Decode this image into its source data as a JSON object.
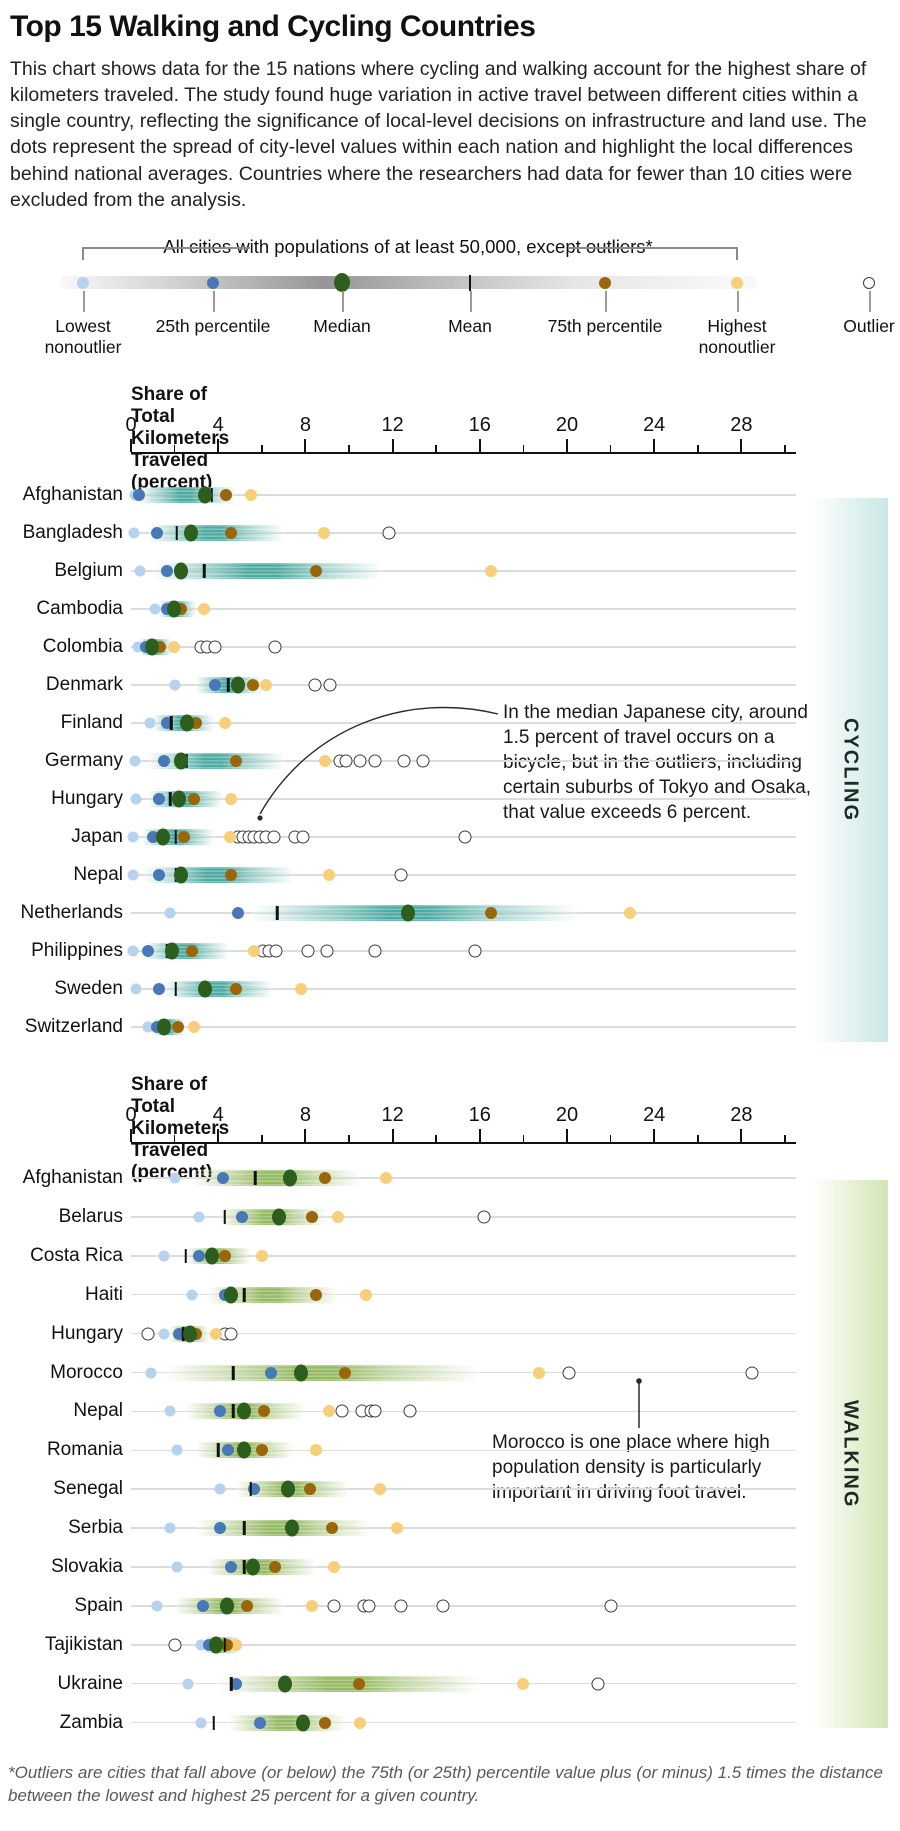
{
  "header": {
    "title": "Top 15 Walking and Cycling Countries",
    "description": "This chart shows data for the 15 nations where cycling and walking account for the highest share of kilometers traveled. The study found huge variation in active travel between different cities within a single country, reflecting the significance of local-level decisions on infrastructure and land use. The dots represent the spread of city-level values within each nation and highlight the local differences behind national averages. Countries where the researchers had data for fewer than 10 cities were excluded from the analysis."
  },
  "legend": {
    "bracket_label": "All cities with populations of at least 50,000, except outliers*",
    "items": [
      {
        "label": "Lowest\nnonoutlier",
        "color": "#b7d2ec",
        "kind": "dot"
      },
      {
        "label": "25th percentile",
        "color": "#4878b8",
        "kind": "dot"
      },
      {
        "label": "Median",
        "color": "#2c5e1e",
        "kind": "dot-large"
      },
      {
        "label": "Mean",
        "color": "#111111",
        "kind": "tick"
      },
      {
        "label": "75th percentile",
        "color": "#9a660b",
        "kind": "dot"
      },
      {
        "label": "Highest\nnonoutlier",
        "color": "#f7cf7a",
        "kind": "dot"
      },
      {
        "label": "Outlier",
        "color": "#3c3c3c",
        "kind": "open-circle"
      }
    ]
  },
  "colors": {
    "lowest": "#b7d2ec",
    "p25": "#4878b8",
    "median": "#2c5e1e",
    "mean": "#111111",
    "p75": "#9a660b",
    "highest": "#f7cf7a",
    "outlier_stroke": "#3c3c3c",
    "cycling_accent": "#1f968a",
    "walking_accent": "#7aa83a",
    "cycling_side_band": "#c9e7e4",
    "walking_side_band": "#d2e5b4",
    "row_line": "#dcdcdc"
  },
  "chart_data": [
    {
      "type": "box-strip",
      "section": "CYCLING",
      "axis_title": "Share of Total Kilometers Traveled (percent)",
      "xlabel": "Share of Total Kilometers Traveled (percent)",
      "x_ticks": [
        0,
        4,
        8,
        12,
        16,
        20,
        24,
        28
      ],
      "x_minor_step": 2,
      "xlim": [
        0,
        30.5
      ],
      "rows": [
        {
          "country": "Afghanistan",
          "low": 0.2,
          "q1": 0.35,
          "median": 3.4,
          "mean": 3.7,
          "q3": 4.35,
          "high": 5.5,
          "outliers": [],
          "band": [
            0.3,
            4.8
          ]
        },
        {
          "country": "Bangladesh",
          "low": 0.15,
          "q1": 1.2,
          "median": 2.75,
          "mean": 2.1,
          "q3": 4.6,
          "high": 8.85,
          "outliers": [
            11.85
          ],
          "band": [
            0.8,
            7.0
          ]
        },
        {
          "country": "Belgium",
          "low": 0.4,
          "q1": 1.65,
          "median": 2.3,
          "mean": 3.35,
          "q3": 8.5,
          "high": 16.5,
          "outliers": [],
          "band": [
            1.0,
            11.5
          ]
        },
        {
          "country": "Cambodia",
          "low": 1.1,
          "q1": 1.65,
          "median": 1.95,
          "mean": 2.1,
          "q3": 2.3,
          "high": 3.35,
          "outliers": [],
          "band": [
            1.3,
            3.0
          ]
        },
        {
          "country": "Colombia",
          "low": 0.3,
          "q1": 0.7,
          "median": 0.95,
          "mean": 1.1,
          "q3": 1.35,
          "high": 1.95,
          "outliers": [
            3.2,
            3.5,
            3.85,
            6.6
          ],
          "band": [
            0.4,
            1.9
          ]
        },
        {
          "country": "Denmark",
          "low": 2.0,
          "q1": 3.85,
          "median": 4.9,
          "mean": 4.45,
          "q3": 5.6,
          "high": 6.2,
          "outliers": [
            8.45,
            9.15
          ],
          "band": [
            3.0,
            6.0
          ]
        },
        {
          "country": "Finland",
          "low": 0.85,
          "q1": 1.65,
          "median": 2.55,
          "mean": 1.85,
          "q3": 3.0,
          "high": 4.3,
          "outliers": [],
          "band": [
            1.0,
            3.8
          ]
        },
        {
          "country": "Germany",
          "low": 0.2,
          "q1": 1.5,
          "median": 2.3,
          "mean": 2.55,
          "q3": 4.8,
          "high": 8.9,
          "outliers": [
            9.6,
            9.85,
            10.5,
            11.2,
            12.5,
            13.4
          ],
          "band": [
            0.8,
            7.0
          ]
        },
        {
          "country": "Hungary",
          "low": 0.25,
          "q1": 1.3,
          "median": 2.2,
          "mean": 1.8,
          "q3": 2.9,
          "high": 4.6,
          "outliers": [],
          "band": [
            0.8,
            4.2
          ]
        },
        {
          "country": "Japan",
          "low": 0.1,
          "q1": 1.0,
          "median": 1.45,
          "mean": 2.05,
          "q3": 2.45,
          "high": 4.55,
          "outliers": [
            4.9,
            5.15,
            5.4,
            5.65,
            5.9,
            6.2,
            6.55,
            7.5,
            7.9,
            15.3
          ],
          "band": [
            0.5,
            3.8
          ]
        },
        {
          "country": "Nepal",
          "low": 0.1,
          "q1": 1.3,
          "median": 2.3,
          "mean": 2.05,
          "q3": 4.6,
          "high": 9.1,
          "outliers": [
            12.4
          ],
          "band": [
            0.6,
            7.5
          ]
        },
        {
          "country": "Netherlands",
          "low": 1.8,
          "q1": 4.9,
          "median": 12.7,
          "mean": 6.7,
          "q3": 16.5,
          "high": 22.9,
          "outliers": [],
          "band": [
            5.5,
            20.5
          ]
        },
        {
          "country": "Philippines",
          "low": 0.1,
          "q1": 0.8,
          "median": 1.9,
          "mean": 1.65,
          "q3": 2.8,
          "high": 5.65,
          "outliers": [
            6.05,
            6.35,
            6.65,
            8.1,
            9.0,
            11.2,
            15.8
          ],
          "band": [
            0.6,
            4.5
          ]
        },
        {
          "country": "Sweden",
          "low": 0.25,
          "q1": 1.3,
          "median": 3.4,
          "mean": 2.05,
          "q3": 4.8,
          "high": 7.8,
          "outliers": [],
          "band": [
            1.5,
            6.5
          ]
        },
        {
          "country": "Switzerland",
          "low": 0.8,
          "q1": 1.2,
          "median": 1.5,
          "mean": 1.6,
          "q3": 2.15,
          "high": 2.9,
          "outliers": [],
          "band": [
            1.0,
            2.5
          ]
        }
      ],
      "annotation": {
        "text": "In the median Japanese city, around\n1.5 percent of travel occurs on a\nbicycle, but in the outliers, including\ncertain suburbs of Tokyo and Osaka,\nthat value exceeds 6 percent.",
        "target_country": "Japan"
      }
    },
    {
      "type": "box-strip",
      "section": "WALKING",
      "axis_title": "Share of Total Kilometers Traveled (percent)",
      "xlabel": "Share of Total Kilometers Traveled (percent)",
      "x_ticks": [
        0,
        4,
        8,
        12,
        16,
        20,
        24,
        28
      ],
      "x_minor_step": 2,
      "xlim": [
        0,
        30.5
      ],
      "rows": [
        {
          "country": "Afghanistan",
          "low": 2.0,
          "q1": 4.2,
          "median": 7.3,
          "mean": 5.7,
          "q3": 8.9,
          "high": 11.7,
          "outliers": [],
          "band": [
            2.8,
            10.5
          ]
        },
        {
          "country": "Belarus",
          "low": 3.1,
          "q1": 5.1,
          "median": 6.8,
          "mean": 4.3,
          "q3": 8.3,
          "high": 9.5,
          "outliers": [
            16.2
          ],
          "band": [
            4.0,
            9.0
          ]
        },
        {
          "country": "Costa Rica",
          "low": 1.5,
          "q1": 3.1,
          "median": 3.7,
          "mean": 2.5,
          "q3": 4.3,
          "high": 6.0,
          "outliers": [],
          "band": [
            2.5,
            5.5
          ]
        },
        {
          "country": "Haiti",
          "low": 2.8,
          "q1": 4.3,
          "median": 4.6,
          "mean": 5.2,
          "q3": 8.5,
          "high": 10.8,
          "outliers": [],
          "band": [
            3.5,
            9.5
          ]
        },
        {
          "country": "Hungary",
          "low": 1.5,
          "q1": 2.2,
          "median": 2.7,
          "mean": 2.4,
          "q3": 3.0,
          "high": 3.9,
          "outliers": [
            4.3,
            4.6
          ],
          "low_outliers": [
            0.8
          ],
          "band": [
            1.8,
            3.6
          ]
        },
        {
          "country": "Morocco",
          "low": 0.9,
          "q1": 6.4,
          "median": 7.8,
          "mean": 4.7,
          "q3": 9.8,
          "high": 18.7,
          "outliers": [
            20.1,
            28.5
          ],
          "band": [
            1.5,
            16.0
          ]
        },
        {
          "country": "Nepal",
          "low": 1.8,
          "q1": 4.1,
          "median": 5.2,
          "mean": 4.7,
          "q3": 6.1,
          "high": 9.1,
          "outliers": [
            9.7,
            10.6,
            11.0,
            11.2,
            12.8
          ],
          "band": [
            2.5,
            8.0
          ]
        },
        {
          "country": "Romania",
          "low": 2.1,
          "q1": 4.45,
          "median": 5.2,
          "mean": 4.0,
          "q3": 6.0,
          "high": 8.5,
          "outliers": [],
          "band": [
            3.0,
            7.5
          ]
        },
        {
          "country": "Senegal",
          "low": 4.1,
          "q1": 5.65,
          "median": 7.2,
          "mean": 5.5,
          "q3": 8.2,
          "high": 11.4,
          "outliers": [],
          "band": [
            4.8,
            10.0
          ]
        },
        {
          "country": "Serbia",
          "low": 1.8,
          "q1": 4.1,
          "median": 7.4,
          "mean": 5.2,
          "q3": 9.2,
          "high": 12.2,
          "outliers": [],
          "band": [
            3.0,
            11.0
          ]
        },
        {
          "country": "Slovakia",
          "low": 2.1,
          "q1": 4.6,
          "median": 5.6,
          "mean": 5.2,
          "q3": 6.6,
          "high": 9.3,
          "outliers": [],
          "band": [
            3.5,
            8.5
          ]
        },
        {
          "country": "Spain",
          "low": 1.2,
          "q1": 3.3,
          "median": 4.4,
          "mean": 4.5,
          "q3": 5.3,
          "high": 8.3,
          "outliers": [
            9.3,
            10.7,
            10.9,
            12.4,
            14.3,
            22.0
          ],
          "band": [
            2.0,
            7.0
          ]
        },
        {
          "country": "Tajikistan",
          "low": 3.2,
          "q1": 3.6,
          "median": 3.9,
          "mean": 4.3,
          "q3": 4.4,
          "high": 4.8,
          "outliers": [],
          "low_outliers": [
            2.0
          ],
          "band": [
            3.3,
            5.0
          ]
        },
        {
          "country": "Ukraine",
          "low": 2.6,
          "q1": 4.8,
          "median": 7.05,
          "mean": 4.6,
          "q3": 10.45,
          "high": 18.0,
          "outliers": [
            21.4
          ],
          "band": [
            4.0,
            16.0
          ]
        },
        {
          "country": "Zambia",
          "low": 3.2,
          "q1": 5.9,
          "median": 7.9,
          "mean": 3.8,
          "q3": 8.9,
          "high": 10.5,
          "outliers": [],
          "band": [
            4.5,
            9.8
          ]
        }
      ],
      "annotation": {
        "text": "Morocco is one place where high\npopulation density is particularly\nimportant in driving foot travel.",
        "target_country": "Morocco",
        "anchor_value": 23.3
      }
    }
  ],
  "footnote": "*Outliers are cities that fall above (or below) the 75th (or 25th) percentile value plus (or minus) 1.5 times the distance\nbetween the lowest and highest 25 percent for a given country."
}
